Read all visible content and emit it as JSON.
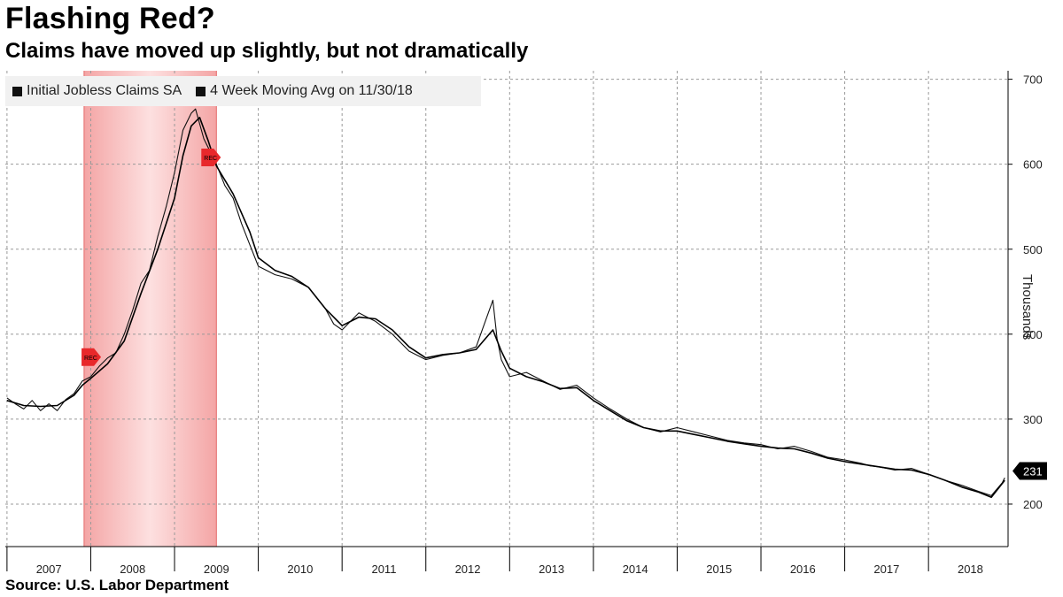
{
  "title": "Flashing Red?",
  "subtitle": "Claims have moved up slightly, but not dramatically",
  "source": "Source: U.S. Labor Department",
  "chart_data": {
    "type": "line",
    "ylabel": "Thousands",
    "ylim": [
      150,
      710
    ],
    "yticks": [
      200,
      300,
      400,
      500,
      600,
      700
    ],
    "xlim": [
      2006.98,
      2018.95
    ],
    "year_labels": [
      "2007",
      "2008",
      "2009",
      "2010",
      "2011",
      "2012",
      "2013",
      "2014",
      "2015",
      "2016",
      "2017",
      "2018"
    ],
    "recession": {
      "start": 2007.92,
      "end": 2009.5,
      "label": "REC",
      "color": "#f4a5a5"
    },
    "last_value_label": "231",
    "grid": true,
    "legend": "top-left",
    "series": [
      {
        "name": "Initial Jobless Claims SA",
        "color": "#111111",
        "x": [
          2007.0,
          2007.1,
          2007.2,
          2007.3,
          2007.4,
          2007.5,
          2007.6,
          2007.7,
          2007.8,
          2007.9,
          2008.0,
          2008.1,
          2008.2,
          2008.3,
          2008.4,
          2008.5,
          2008.6,
          2008.7,
          2008.8,
          2008.9,
          2009.0,
          2009.1,
          2009.2,
          2009.25,
          2009.35,
          2009.5,
          2009.6,
          2009.7,
          2009.8,
          2009.9,
          2010.0,
          2010.2,
          2010.4,
          2010.6,
          2010.8,
          2010.9,
          2011.0,
          2011.2,
          2011.3,
          2011.4,
          2011.6,
          2011.8,
          2012.0,
          2012.2,
          2012.4,
          2012.6,
          2012.8,
          2012.85,
          2012.9,
          2013.0,
          2013.2,
          2013.4,
          2013.6,
          2013.8,
          2014.0,
          2014.2,
          2014.4,
          2014.6,
          2014.8,
          2015.0,
          2015.2,
          2015.4,
          2015.6,
          2015.8,
          2016.0,
          2016.2,
          2016.4,
          2016.6,
          2016.8,
          2017.0,
          2017.2,
          2017.3,
          2017.4,
          2017.6,
          2017.8,
          2018.0,
          2018.2,
          2018.4,
          2018.6,
          2018.75,
          2018.88,
          2018.91
        ],
        "values": [
          325,
          318,
          312,
          322,
          310,
          318,
          310,
          323,
          330,
          345,
          350,
          362,
          372,
          378,
          400,
          428,
          460,
          475,
          515,
          550,
          590,
          640,
          660,
          665,
          630,
          600,
          575,
          560,
          530,
          505,
          480,
          470,
          465,
          455,
          430,
          412,
          405,
          425,
          420,
          415,
          400,
          380,
          370,
          375,
          378,
          385,
          440,
          395,
          370,
          350,
          355,
          345,
          335,
          340,
          325,
          312,
          300,
          290,
          285,
          290,
          285,
          280,
          275,
          272,
          270,
          265,
          268,
          262,
          255,
          252,
          248,
          245,
          244,
          240,
          242,
          235,
          228,
          222,
          215,
          210,
          225,
          231
        ]
      },
      {
        "name": "4 Week Moving Avg on 11/30/18",
        "color": "#000000",
        "x": [
          2007.0,
          2007.2,
          2007.4,
          2007.6,
          2007.8,
          2007.9,
          2008.0,
          2008.2,
          2008.4,
          2008.6,
          2008.8,
          2009.0,
          2009.1,
          2009.2,
          2009.3,
          2009.4,
          2009.5,
          2009.7,
          2009.9,
          2010.0,
          2010.2,
          2010.4,
          2010.6,
          2010.8,
          2011.0,
          2011.2,
          2011.4,
          2011.6,
          2011.8,
          2012.0,
          2012.2,
          2012.4,
          2012.6,
          2012.8,
          2012.9,
          2013.0,
          2013.2,
          2013.4,
          2013.6,
          2013.8,
          2014.0,
          2014.2,
          2014.4,
          2014.6,
          2014.8,
          2015.0,
          2015.2,
          2015.4,
          2015.6,
          2015.8,
          2016.0,
          2016.2,
          2016.4,
          2016.6,
          2016.8,
          2017.0,
          2017.2,
          2017.4,
          2017.6,
          2017.8,
          2018.0,
          2018.2,
          2018.4,
          2018.6,
          2018.75,
          2018.91
        ],
        "values": [
          322,
          316,
          315,
          316,
          328,
          340,
          348,
          365,
          392,
          448,
          500,
          560,
          610,
          645,
          655,
          628,
          598,
          565,
          520,
          490,
          475,
          468,
          455,
          430,
          410,
          420,
          418,
          405,
          385,
          372,
          376,
          378,
          382,
          405,
          380,
          360,
          350,
          344,
          336,
          337,
          322,
          310,
          298,
          290,
          286,
          286,
          282,
          278,
          274,
          271,
          268,
          266,
          265,
          260,
          254,
          250,
          247,
          244,
          241,
          240,
          235,
          228,
          220,
          214,
          208,
          228
        ]
      }
    ]
  }
}
